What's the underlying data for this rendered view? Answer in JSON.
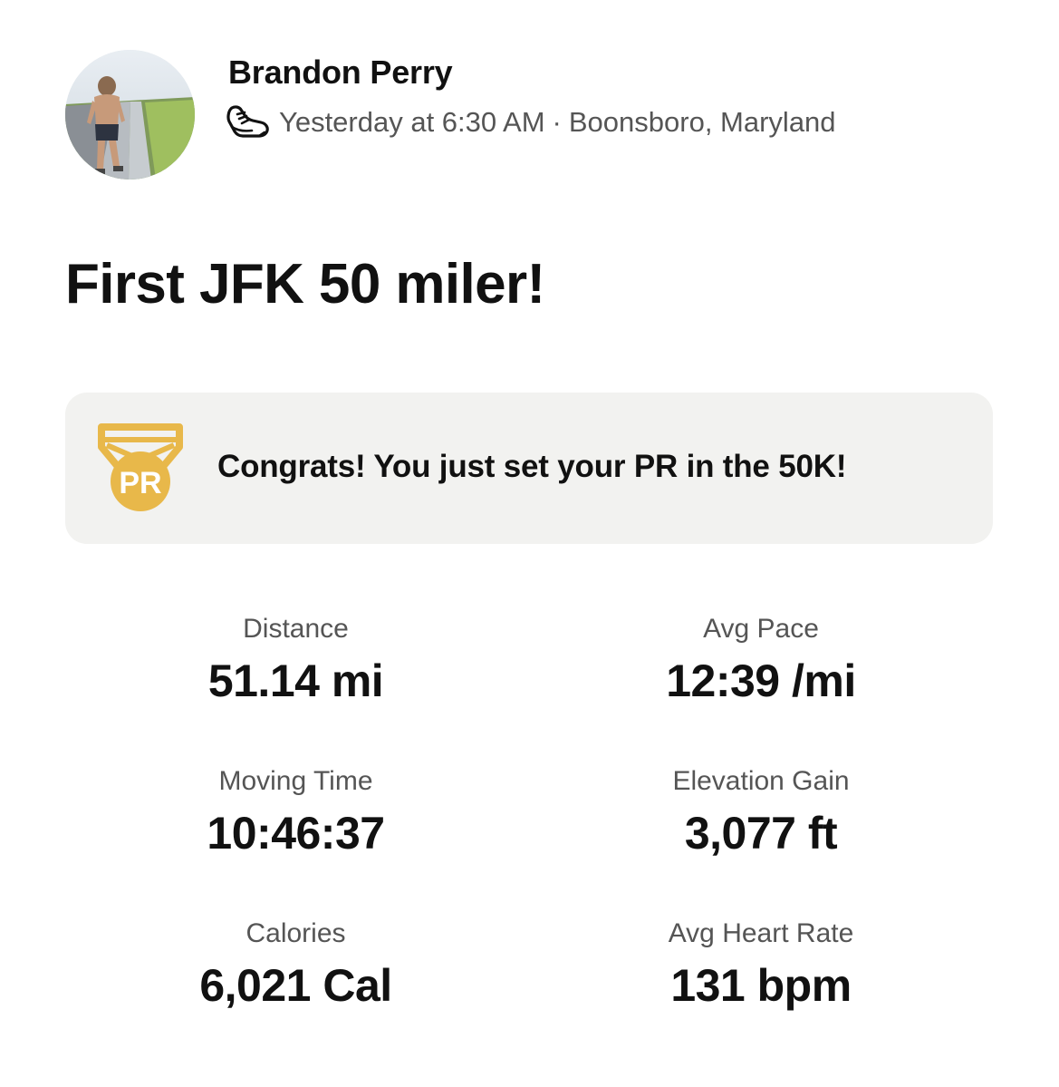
{
  "athlete": {
    "name": "Brandon Perry",
    "avatar_icon": "runner-photo-avatar"
  },
  "activity": {
    "sport_icon": "running-shoe-icon",
    "date_time": "Yesterday at 6:30 AM",
    "separator": "·",
    "location": "Boonsboro, Maryland",
    "title": "First JFK 50 miler!"
  },
  "pr_banner": {
    "icon": "pr-medal-icon",
    "badge_text": "PR",
    "message": "Congrats! You just set your PR in the 50K!",
    "colors": {
      "background": "#f2f2f0",
      "medal": "#e8b84a"
    }
  },
  "stats": [
    {
      "label": "Distance",
      "value": "51.14 mi"
    },
    {
      "label": "Avg Pace",
      "value": "12:39 /mi"
    },
    {
      "label": "Moving Time",
      "value": "10:46:37"
    },
    {
      "label": "Elevation Gain",
      "value": "3,077 ft"
    },
    {
      "label": "Calories",
      "value": "6,021 Cal"
    },
    {
      "label": "Avg Heart Rate",
      "value": "131 bpm"
    }
  ]
}
